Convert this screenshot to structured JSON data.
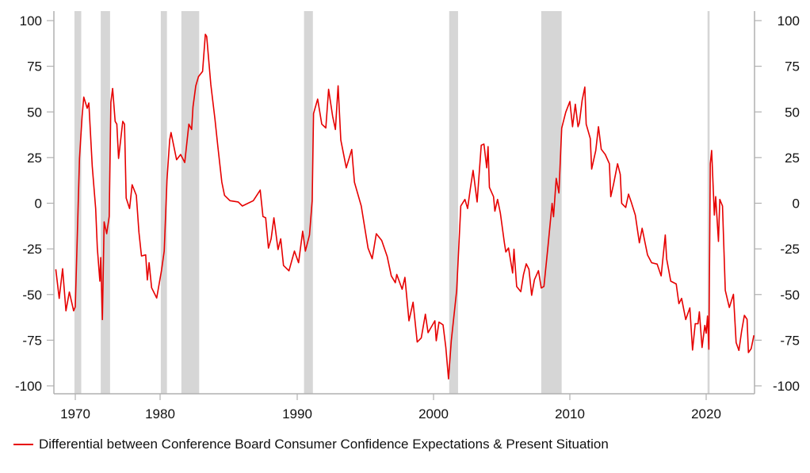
{
  "chart_data": {
    "type": "line",
    "title": "",
    "xlabel": "",
    "ylabel": "",
    "ylim": [
      -105,
      105
    ],
    "xlim": [
      1967.3,
      2023.6
    ],
    "grid": false,
    "yticks": [
      100,
      75,
      50,
      25,
      0,
      -25,
      -50,
      -75,
      -100
    ],
    "ytick_labels": [
      "100",
      "75",
      "50",
      "25",
      "0",
      "-25",
      "-50",
      "-75",
      "-100"
    ],
    "xticks": [
      1970,
      1980,
      1990,
      2000,
      2010,
      2020
    ],
    "xtick_labels": [
      "1970",
      "1980",
      "1990",
      "2000",
      "2010",
      "2020"
    ],
    "legend_placement": "bottom-left",
    "colors": {
      "series": "#e60000",
      "recession": "#d6d6d6",
      "axis": "#b0b0b0"
    },
    "recessions": [
      [
        1969.9,
        1970.7
      ],
      [
        1973.0,
        1974.1
      ],
      [
        1980.05,
        1980.5
      ],
      [
        1981.55,
        1982.85
      ],
      [
        1990.5,
        1991.15
      ],
      [
        2001.15,
        2001.8
      ],
      [
        2007.9,
        2009.4
      ],
      [
        2020.1,
        2020.25
      ]
    ],
    "series": [
      {
        "name": "Differential between Conference Board Consumer Confidence Expectations & Present Situation",
        "points": [
          [
            1967.7,
            -36.2
          ],
          [
            1968.1,
            -52.1
          ],
          [
            1968.5,
            -35.9
          ],
          [
            1968.9,
            -58.9
          ],
          [
            1969.3,
            -48.6
          ],
          [
            1969.8,
            -58.9
          ],
          [
            1970.0,
            -56.7
          ],
          [
            1970.5,
            24.5
          ],
          [
            1970.8,
            47.7
          ],
          [
            1971.0,
            58.1
          ],
          [
            1971.4,
            52.0
          ],
          [
            1971.6,
            54.9
          ],
          [
            1972.0,
            20.2
          ],
          [
            1972.4,
            -2.9
          ],
          [
            1972.6,
            -24.5
          ],
          [
            1972.9,
            -42.7
          ],
          [
            1973.0,
            -29.7
          ],
          [
            1973.2,
            -63.7
          ],
          [
            1973.4,
            -10.2
          ],
          [
            1973.7,
            -16.7
          ],
          [
            1974.0,
            -7.2
          ],
          [
            1974.2,
            55.3
          ],
          [
            1974.4,
            62.8
          ],
          [
            1974.7,
            44.8
          ],
          [
            1974.9,
            43.3
          ],
          [
            1975.1,
            24.5
          ],
          [
            1975.6,
            44.8
          ],
          [
            1975.8,
            43.3
          ],
          [
            1976.0,
            2.8
          ],
          [
            1976.4,
            -2.9
          ],
          [
            1976.7,
            10.1
          ],
          [
            1977.2,
            4.3
          ],
          [
            1977.5,
            -15.9
          ],
          [
            1977.8,
            -28.9
          ],
          [
            1978.3,
            -28.3
          ],
          [
            1978.5,
            -42.0
          ],
          [
            1978.7,
            -32.6
          ],
          [
            1979.0,
            -46.3
          ],
          [
            1979.6,
            -51.9
          ],
          [
            1980.1,
            -37.0
          ],
          [
            1980.3,
            -26.2
          ],
          [
            1980.5,
            12.9
          ],
          [
            1980.7,
            34.7
          ],
          [
            1980.8,
            38.7
          ],
          [
            1981.2,
            23.8
          ],
          [
            1981.5,
            26.7
          ],
          [
            1981.8,
            22.3
          ],
          [
            1982.1,
            43.3
          ],
          [
            1982.3,
            40.4
          ],
          [
            1982.4,
            52.7
          ],
          [
            1982.6,
            64.2
          ],
          [
            1982.8,
            69.3
          ],
          [
            1983.1,
            72.2
          ],
          [
            1983.3,
            92.5
          ],
          [
            1983.4,
            91.3
          ],
          [
            1983.7,
            65.0
          ],
          [
            1984.0,
            46.1
          ],
          [
            1984.2,
            31.7
          ],
          [
            1984.5,
            11.5
          ],
          [
            1984.7,
            4.3
          ],
          [
            1985.1,
            1.4
          ],
          [
            1985.7,
            0.7
          ],
          [
            1986.0,
            -1.5
          ],
          [
            1986.8,
            1.4
          ],
          [
            1987.3,
            7.2
          ],
          [
            1987.5,
            -7.3
          ],
          [
            1987.7,
            -8.0
          ],
          [
            1987.9,
            -24.6
          ],
          [
            1988.1,
            -19.5
          ],
          [
            1988.3,
            -8.0
          ],
          [
            1988.6,
            -25.4
          ],
          [
            1988.8,
            -19.5
          ],
          [
            1989.0,
            -34.1
          ],
          [
            1989.4,
            -37.0
          ],
          [
            1989.8,
            -26.2
          ],
          [
            1990.1,
            -32.6
          ],
          [
            1990.4,
            -15.3
          ],
          [
            1990.6,
            -26.2
          ],
          [
            1990.9,
            -17.4
          ],
          [
            1991.1,
            1.4
          ],
          [
            1991.2,
            49.1
          ],
          [
            1991.5,
            57.0
          ],
          [
            1991.8,
            43.3
          ],
          [
            1992.1,
            41.2
          ],
          [
            1992.3,
            62.4
          ],
          [
            1992.6,
            47.6
          ],
          [
            1992.8,
            40.4
          ],
          [
            1993.0,
            64.3
          ],
          [
            1993.2,
            34.6
          ],
          [
            1993.6,
            19.4
          ],
          [
            1994.0,
            29.4
          ],
          [
            1994.2,
            11.5
          ],
          [
            1994.7,
            -1.5
          ],
          [
            1995.2,
            -24.6
          ],
          [
            1995.5,
            -30.4
          ],
          [
            1995.8,
            -16.7
          ],
          [
            1996.2,
            -20.4
          ],
          [
            1996.6,
            -29.1
          ],
          [
            1996.9,
            -39.8
          ],
          [
            1997.2,
            -43.5
          ],
          [
            1997.3,
            -39.0
          ],
          [
            1997.7,
            -47.1
          ],
          [
            1997.9,
            -40.6
          ],
          [
            1998.2,
            -64.4
          ],
          [
            1998.5,
            -54.2
          ],
          [
            1998.8,
            -76.0
          ],
          [
            1999.1,
            -73.8
          ],
          [
            1999.4,
            -60.8
          ],
          [
            1999.6,
            -70.9
          ],
          [
            2000.1,
            -64.4
          ],
          [
            2000.2,
            -75.3
          ],
          [
            2000.4,
            -65.1
          ],
          [
            2000.7,
            -66.6
          ],
          [
            2000.9,
            -78.9
          ],
          [
            2001.1,
            -96.2
          ],
          [
            2001.3,
            -75.3
          ],
          [
            2001.7,
            -47.7
          ],
          [
            2002.0,
            -1.5
          ],
          [
            2002.3,
            2.1
          ],
          [
            2002.5,
            -2.9
          ],
          [
            2002.7,
            7.9
          ],
          [
            2002.9,
            18.0
          ],
          [
            2003.2,
            0.7
          ],
          [
            2003.5,
            31.7
          ],
          [
            2003.7,
            32.4
          ],
          [
            2003.9,
            19.4
          ],
          [
            2004.0,
            31.0
          ],
          [
            2004.1,
            8.7
          ],
          [
            2004.4,
            3.6
          ],
          [
            2004.5,
            -4.4
          ],
          [
            2004.7,
            2.1
          ],
          [
            2004.9,
            -5.4
          ],
          [
            2005.2,
            -21.7
          ],
          [
            2005.3,
            -26.7
          ],
          [
            2005.5,
            -24.5
          ],
          [
            2005.8,
            -38.2
          ],
          [
            2005.9,
            -25.2
          ],
          [
            2006.1,
            -45.6
          ],
          [
            2006.4,
            -48.4
          ],
          [
            2006.6,
            -39.1
          ],
          [
            2006.8,
            -33.2
          ],
          [
            2007.0,
            -36.2
          ],
          [
            2007.2,
            -50.4
          ],
          [
            2007.4,
            -41.9
          ],
          [
            2007.7,
            -36.9
          ],
          [
            2007.9,
            -46.4
          ],
          [
            2008.1,
            -45.6
          ],
          [
            2008.4,
            -23.2
          ],
          [
            2008.7,
            -0.1
          ],
          [
            2008.8,
            -7.4
          ],
          [
            2009.0,
            13.6
          ],
          [
            2009.2,
            5.6
          ],
          [
            2009.4,
            41.1
          ],
          [
            2009.7,
            49.8
          ],
          [
            2010.0,
            55.7
          ],
          [
            2010.2,
            41.9
          ],
          [
            2010.4,
            54.2
          ],
          [
            2010.6,
            41.9
          ],
          [
            2010.7,
            44.0
          ],
          [
            2010.9,
            56.3
          ],
          [
            2011.1,
            63.6
          ],
          [
            2011.2,
            43.3
          ],
          [
            2011.5,
            35.4
          ],
          [
            2011.6,
            18.7
          ],
          [
            2011.9,
            28.9
          ],
          [
            2012.1,
            41.9
          ],
          [
            2012.3,
            29.6
          ],
          [
            2012.6,
            26.7
          ],
          [
            2012.9,
            21.6
          ],
          [
            2013.0,
            3.6
          ],
          [
            2013.2,
            10.1
          ],
          [
            2013.5,
            21.6
          ],
          [
            2013.7,
            15.8
          ],
          [
            2013.8,
            -0.1
          ],
          [
            2014.1,
            -2.3
          ],
          [
            2014.3,
            5.0
          ],
          [
            2014.5,
            0.7
          ],
          [
            2014.8,
            -6.5
          ],
          [
            2015.1,
            -21.7
          ],
          [
            2015.3,
            -13.7
          ],
          [
            2015.7,
            -28.3
          ],
          [
            2016.0,
            -32.6
          ],
          [
            2016.4,
            -33.3
          ],
          [
            2016.7,
            -39.8
          ],
          [
            2017.0,
            -17.4
          ],
          [
            2017.1,
            -30.4
          ],
          [
            2017.4,
            -42.7
          ],
          [
            2017.8,
            -44.2
          ],
          [
            2018.0,
            -55.0
          ],
          [
            2018.2,
            -52.1
          ],
          [
            2018.5,
            -63.7
          ],
          [
            2018.8,
            -57.3
          ],
          [
            2019.0,
            -80.4
          ],
          [
            2019.2,
            -66.0
          ],
          [
            2019.4,
            -66.0
          ],
          [
            2019.5,
            -59.5
          ],
          [
            2019.7,
            -79.0
          ],
          [
            2019.9,
            -66.9
          ],
          [
            2020.0,
            -71.2
          ],
          [
            2020.1,
            -61.8
          ],
          [
            2020.2,
            -79.9
          ],
          [
            2020.3,
            21.6
          ],
          [
            2020.4,
            28.9
          ],
          [
            2020.6,
            -6.5
          ],
          [
            2020.7,
            3.6
          ],
          [
            2020.9,
            -20.9
          ],
          [
            2021.0,
            2.1
          ],
          [
            2021.2,
            -1.5
          ],
          [
            2021.4,
            -47.7
          ],
          [
            2021.7,
            -57.1
          ],
          [
            2022.0,
            -49.9
          ],
          [
            2022.2,
            -76.3
          ],
          [
            2022.4,
            -80.6
          ],
          [
            2022.6,
            -70.1
          ],
          [
            2022.8,
            -61.4
          ],
          [
            2023.0,
            -63.6
          ],
          [
            2023.1,
            -81.8
          ],
          [
            2023.3,
            -79.6
          ],
          [
            2023.5,
            -72.3
          ]
        ]
      }
    ]
  }
}
